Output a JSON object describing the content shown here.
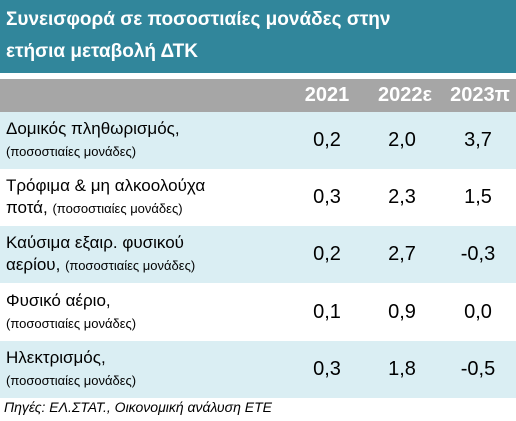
{
  "header": {
    "title_lines": [
      "Συνεισφορά σε ποσοστιαίες μονάδες στην",
      "ετήσια μεταβολή ΔΤΚ"
    ]
  },
  "table": {
    "columns": [
      "2021",
      "2022ε",
      "2023π"
    ],
    "rows": [
      {
        "label": [
          "Δομικός πληθωρισμός,"
        ],
        "unit": "(ποσοστιαίες μονάδες)",
        "values": [
          "0,2",
          "2,0",
          "3,7"
        ]
      },
      {
        "label": [
          "Τρόφιμα & μη αλκοολούχα",
          "ποτά,"
        ],
        "unit": "(ποσοστιαίες μονάδες)",
        "values": [
          "0,3",
          "2,3",
          "1,5"
        ]
      },
      {
        "label": [
          "Καύσιμα εξαιρ. φυσικού",
          "αερίου,"
        ],
        "unit": "(ποσοστιαίες μονάδες)",
        "values": [
          "0,2",
          "2,7",
          "-0,3"
        ]
      },
      {
        "label": [
          "Φυσικό αέριο,"
        ],
        "unit": "(ποσοστιαίες μονάδες)",
        "values": [
          "0,1",
          "0,9",
          "0,0"
        ]
      },
      {
        "label": [
          "Ηλεκτρισμός,"
        ],
        "unit": "(ποσοστιαίες μονάδες)",
        "values": [
          "0,3",
          "1,8",
          "-0,5"
        ]
      }
    ]
  },
  "footer": {
    "source": "Πηγές: ΕΛ.ΣΤΑΤ., Οικονομική ανάλυση ΕΤΕ"
  }
}
